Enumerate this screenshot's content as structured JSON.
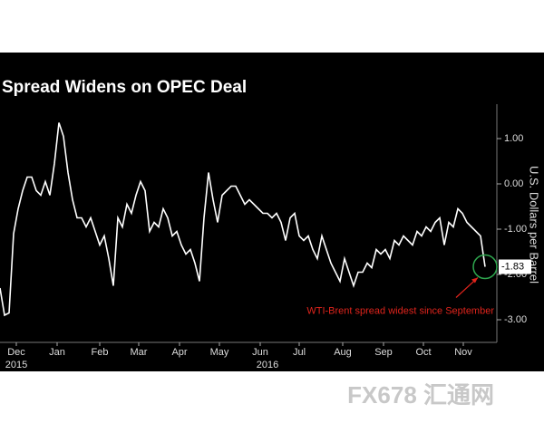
{
  "chart_data": {
    "type": "line",
    "title": "Spread Widens on OPEC Deal",
    "y_axis_label": "U.S. Dollars per Barrel",
    "annotation": "WTI-Brent spread widest since September",
    "watermark": "FX678 汇通网",
    "series": [
      {
        "name": "WTI-Brent spread",
        "color": "#ffffff",
        "values": [
          -2.3,
          -2.9,
          -2.85,
          -1.1,
          -0.55,
          -0.15,
          0.15,
          0.15,
          -0.15,
          -0.25,
          0.05,
          -0.25,
          0.45,
          1.35,
          1.05,
          0.25,
          -0.35,
          -0.75,
          -0.75,
          -0.95,
          -0.75,
          -1.05,
          -1.35,
          -1.15,
          -1.65,
          -2.25,
          -0.75,
          -0.95,
          -0.45,
          -0.65,
          -0.25,
          0.05,
          -0.15,
          -1.05,
          -0.85,
          -0.95,
          -0.55,
          -0.75,
          -1.15,
          -1.05,
          -1.35,
          -1.55,
          -1.45,
          -1.75,
          -2.15,
          -0.75,
          0.25,
          -0.35,
          -0.85,
          -0.25,
          -0.15,
          -0.05,
          -0.05,
          -0.25,
          -0.45,
          -0.35,
          -0.45,
          -0.55,
          -0.65,
          -0.65,
          -0.75,
          -0.65,
          -0.85,
          -1.25,
          -0.75,
          -0.65,
          -1.15,
          -1.25,
          -1.15,
          -1.45,
          -1.65,
          -1.15,
          -1.45,
          -1.75,
          -1.95,
          -2.15,
          -1.65,
          -1.95,
          -2.25,
          -1.95,
          -1.95,
          -1.75,
          -1.85,
          -1.45,
          -1.55,
          -1.45,
          -1.65,
          -1.25,
          -1.35,
          -1.15,
          -1.25,
          -1.35,
          -1.05,
          -1.15,
          -0.95,
          -1.05,
          -0.85,
          -0.75,
          -1.35,
          -0.85,
          -0.95,
          -0.55,
          -0.65,
          -0.85,
          -0.95,
          -1.05,
          -1.15,
          -1.83
        ]
      }
    ],
    "xlim": [
      0,
      107
    ],
    "xticks": [
      {
        "value": 3.6,
        "label": "Dec"
      },
      {
        "value": 12.6,
        "label": "Jan"
      },
      {
        "value": 22,
        "label": "Feb"
      },
      {
        "value": 30.6,
        "label": "Mar"
      },
      {
        "value": 39.6,
        "label": "Apr"
      },
      {
        "value": 48.4,
        "label": "May"
      },
      {
        "value": 57.4,
        "label": "Jun"
      },
      {
        "value": 66,
        "label": "Jul"
      },
      {
        "value": 75.6,
        "label": "Aug"
      },
      {
        "value": 84.6,
        "label": "Sep"
      },
      {
        "value": 93.4,
        "label": "Oct"
      },
      {
        "value": 102.2,
        "label": "Nov"
      }
    ],
    "xticks_years": [
      {
        "value": 3.6,
        "label": "2015"
      },
      {
        "value": 59,
        "label": "2016"
      }
    ],
    "ylim": [
      -3.5,
      1.76
    ],
    "yticks": [
      {
        "value": 1,
        "label": "1.00"
      },
      {
        "value": 0,
        "label": "0.00"
      },
      {
        "value": -1,
        "label": "-1.00"
      },
      {
        "value": -2,
        "label": "-2.00"
      },
      {
        "value": -3,
        "label": "-3.00"
      }
    ],
    "annotation_color": "#e0241c",
    "highlight_color": "#2fa84f"
  }
}
